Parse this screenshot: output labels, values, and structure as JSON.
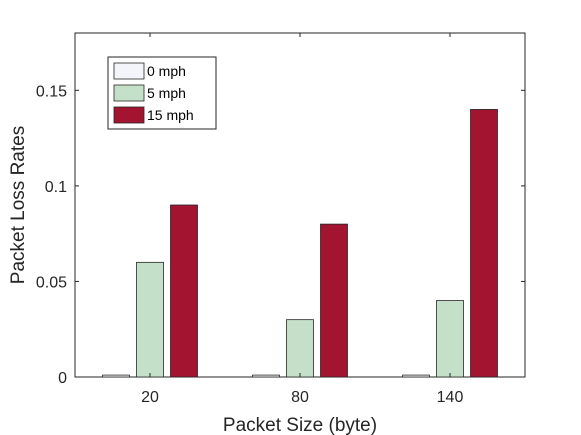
{
  "chart_data": {
    "type": "bar",
    "title": "",
    "xlabel": "Packet Size (byte)",
    "ylabel": "Packet Loss Rates",
    "categories": [
      "20",
      "80",
      "140"
    ],
    "series": [
      {
        "name": "0 mph",
        "values": [
          0.001,
          0.001,
          0.001
        ],
        "color": "#f4f4fb"
      },
      {
        "name": "5 mph",
        "values": [
          0.06,
          0.03,
          0.04
        ],
        "color": "#c5e0c8"
      },
      {
        "name": "15 mph",
        "values": [
          0.09,
          0.08,
          0.14
        ],
        "color": "#a31431"
      }
    ],
    "ylim": [
      0,
      0.18
    ],
    "yticks": [
      "0",
      "0.05",
      "0.1",
      "0.15"
    ],
    "ytick_values": [
      0,
      0.05,
      0.1,
      0.15
    ],
    "grid": false,
    "legend_position": "top-left"
  }
}
